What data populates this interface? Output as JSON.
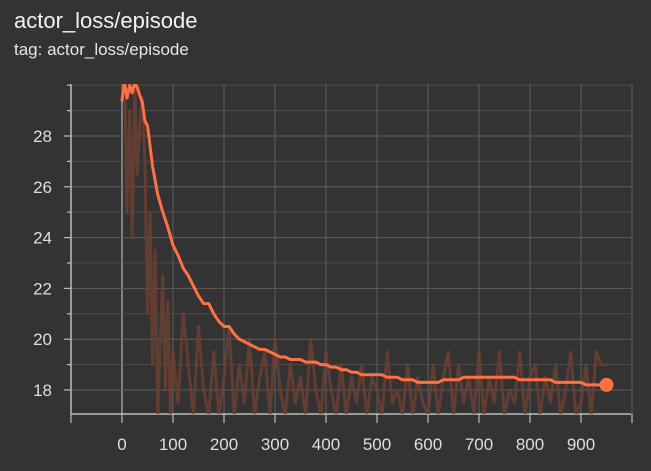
{
  "card": {
    "title": "actor_loss/episode",
    "subtitle": "tag: actor_loss/episode"
  },
  "colors": {
    "background": "#333333",
    "grid": "#5e5e5e",
    "axis": "#bdbdbd",
    "smoothed_line": "#ff7043",
    "raw_line": "#6b3f31",
    "tick_text": "#dedede"
  },
  "chart_data": {
    "type": "line",
    "title": "",
    "xlabel": "",
    "ylabel": "",
    "xlim": [
      -100,
      1000
    ],
    "ylim": [
      17.0,
      30.0
    ],
    "grid": true,
    "x_ticks": [
      0,
      100,
      200,
      300,
      400,
      500,
      600,
      700,
      800,
      900
    ],
    "y_ticks": [
      18,
      20,
      22,
      24,
      26,
      28
    ],
    "series": [
      {
        "role": "raw",
        "x": [
          0,
          5,
          10,
          15,
          20,
          25,
          30,
          35,
          40,
          45,
          50,
          55,
          60,
          65,
          70,
          75,
          80,
          85,
          90,
          95,
          100,
          110,
          120,
          130,
          140,
          150,
          160,
          170,
          180,
          190,
          200,
          210,
          220,
          230,
          240,
          250,
          260,
          270,
          280,
          290,
          300,
          310,
          320,
          330,
          340,
          350,
          360,
          370,
          380,
          390,
          400,
          410,
          420,
          430,
          440,
          450,
          460,
          470,
          480,
          490,
          500,
          510,
          520,
          530,
          540,
          550,
          560,
          570,
          580,
          590,
          600,
          610,
          620,
          630,
          640,
          650,
          660,
          670,
          680,
          690,
          700,
          710,
          720,
          730,
          740,
          750,
          760,
          770,
          780,
          790,
          800,
          810,
          820,
          830,
          840,
          850,
          860,
          870,
          880,
          890,
          900,
          910,
          920,
          930,
          940,
          950
        ],
        "y": [
          29.5,
          30.5,
          25.0,
          29.0,
          24.0,
          30.0,
          26.5,
          28.5,
          29.5,
          27.0,
          21.0,
          25.0,
          19.0,
          23.5,
          17.0,
          20.0,
          22.5,
          18.0,
          21.5,
          17.0,
          19.5,
          17.5,
          21.0,
          19.0,
          17.0,
          20.5,
          18.0,
          17.0,
          19.5,
          17.0,
          18.5,
          20.5,
          17.0,
          19.0,
          17.5,
          20.0,
          17.0,
          18.5,
          19.5,
          17.0,
          20.0,
          18.0,
          17.0,
          19.0,
          17.5,
          18.5,
          17.0,
          20.0,
          18.0,
          17.0,
          19.5,
          18.0,
          17.0,
          19.0,
          17.0,
          18.5,
          17.5,
          19.0,
          17.0,
          18.5,
          18.0,
          17.0,
          19.5,
          17.5,
          18.0,
          17.0,
          19.0,
          17.0,
          18.5,
          17.5,
          17.0,
          19.0,
          17.0,
          18.5,
          19.5,
          17.0,
          19.0,
          17.5,
          18.5,
          17.0,
          19.5,
          17.0,
          18.5,
          17.5,
          19.5,
          17.0,
          18.0,
          17.5,
          19.5,
          17.0,
          18.5,
          19.0,
          17.0,
          18.5,
          17.5,
          19.0,
          17.0,
          18.0,
          19.5,
          17.0,
          17.5,
          19.0,
          17.0,
          19.5,
          19.0,
          19.0
        ]
      },
      {
        "role": "smoothed",
        "x": [
          0,
          5,
          10,
          15,
          20,
          25,
          30,
          35,
          40,
          45,
          50,
          55,
          60,
          70,
          80,
          90,
          100,
          110,
          120,
          130,
          140,
          150,
          160,
          170,
          180,
          190,
          200,
          210,
          220,
          230,
          240,
          250,
          260,
          270,
          280,
          290,
          300,
          310,
          320,
          330,
          340,
          350,
          360,
          370,
          380,
          390,
          400,
          410,
          420,
          430,
          440,
          450,
          460,
          470,
          480,
          490,
          500,
          510,
          520,
          530,
          540,
          550,
          560,
          570,
          580,
          590,
          600,
          610,
          620,
          630,
          640,
          650,
          660,
          670,
          680,
          690,
          700,
          710,
          720,
          730,
          740,
          750,
          760,
          770,
          780,
          790,
          800,
          810,
          820,
          830,
          840,
          850,
          860,
          870,
          880,
          890,
          900,
          910,
          920,
          930,
          940,
          950
        ],
        "y": [
          29.4,
          30.1,
          29.5,
          30.0,
          29.7,
          30.1,
          29.9,
          29.6,
          29.3,
          28.6,
          28.4,
          27.6,
          26.8,
          25.7,
          25.0,
          24.4,
          23.7,
          23.3,
          22.8,
          22.5,
          22.1,
          21.7,
          21.4,
          21.4,
          21.0,
          20.7,
          20.5,
          20.5,
          20.2,
          20.0,
          19.9,
          19.8,
          19.7,
          19.6,
          19.6,
          19.5,
          19.4,
          19.3,
          19.3,
          19.2,
          19.2,
          19.2,
          19.1,
          19.1,
          19.1,
          19.0,
          19.0,
          18.9,
          18.9,
          18.8,
          18.8,
          18.7,
          18.7,
          18.6,
          18.6,
          18.6,
          18.6,
          18.6,
          18.5,
          18.5,
          18.5,
          18.4,
          18.4,
          18.4,
          18.3,
          18.3,
          18.3,
          18.3,
          18.3,
          18.4,
          18.4,
          18.4,
          18.4,
          18.5,
          18.5,
          18.5,
          18.5,
          18.5,
          18.5,
          18.5,
          18.5,
          18.5,
          18.5,
          18.5,
          18.4,
          18.4,
          18.4,
          18.4,
          18.4,
          18.4,
          18.4,
          18.3,
          18.3,
          18.3,
          18.3,
          18.3,
          18.3,
          18.2,
          18.2,
          18.2,
          18.2,
          18.2
        ]
      }
    ]
  }
}
